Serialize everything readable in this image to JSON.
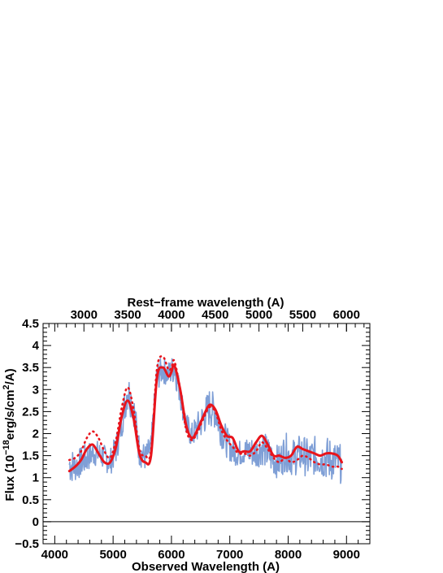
{
  "chart_data": {
    "type": "line",
    "title": "",
    "xlabel": "Observed Wavelength (A)",
    "x2label": "Rest−frame wavelength (A)",
    "ylabel": {
      "prefix": "Flux (10",
      "exp1": "−18",
      "mid": "erg/s/cm",
      "exp2": "2",
      "suffix": "/A)"
    },
    "xlim": [
      3800,
      9400
    ],
    "ylim": [
      -0.5,
      4.5
    ],
    "rest_frame_factor": 1.5,
    "x_ticks": [
      4000,
      5000,
      6000,
      7000,
      8000,
      9000
    ],
    "x2_ticks": [
      3000,
      3500,
      4000,
      4500,
      5000,
      5500,
      6000
    ],
    "y_ticks": [
      -0.5,
      0,
      0.5,
      1,
      1.5,
      2,
      2.5,
      3,
      3.5,
      4,
      4.5
    ],
    "y_tick_labels": [
      "−0.5",
      "0",
      "0.5",
      "1",
      "1.5",
      "2",
      "2.5",
      "3",
      "3.5",
      "4",
      "4.5"
    ],
    "zero_line": 0,
    "grid": false,
    "legend": "none",
    "colors": {
      "observed": "#7f9fd6",
      "model": "#e8141c",
      "axis": "#000000"
    },
    "series": [
      {
        "key": "observed",
        "style": "noisy-band",
        "x": [
          4250,
          4350,
          4450,
          4550,
          4650,
          4750,
          4850,
          4950,
          5050,
          5150,
          5250,
          5350,
          5450,
          5550,
          5650,
          5750,
          5850,
          5950,
          6050,
          6150,
          6250,
          6350,
          6450,
          6550,
          6650,
          6750,
          6850,
          6950,
          7050,
          7150,
          7250,
          7350,
          7450,
          7550,
          7650,
          7750,
          7850,
          7950,
          8050,
          8150,
          8250,
          8350,
          8450,
          8550,
          8650,
          8750,
          8850,
          8920
        ],
        "y": [
          1.3,
          1.25,
          1.35,
          1.45,
          1.55,
          1.55,
          1.45,
          1.35,
          1.65,
          2.25,
          3.0,
          2.6,
          1.6,
          1.45,
          1.7,
          3.3,
          3.45,
          3.35,
          3.5,
          2.9,
          2.2,
          1.95,
          2.15,
          2.35,
          2.6,
          2.5,
          2.1,
          1.8,
          1.6,
          1.55,
          1.6,
          1.6,
          1.55,
          1.7,
          1.55,
          1.4,
          1.35,
          1.6,
          1.45,
          1.5,
          1.55,
          1.4,
          1.5,
          1.45,
          1.45,
          1.4,
          1.35,
          1.3
        ],
        "band_halfwidth": [
          0.45,
          0.35,
          0.35,
          0.35,
          0.3,
          0.3,
          0.3,
          0.3,
          0.35,
          0.35,
          0.45,
          0.4,
          0.35,
          0.3,
          0.3,
          0.35,
          0.3,
          0.3,
          0.35,
          0.3,
          0.3,
          0.3,
          0.35,
          0.4,
          0.45,
          0.4,
          0.4,
          0.35,
          0.3,
          0.3,
          0.3,
          0.35,
          0.35,
          0.4,
          0.4,
          0.35,
          0.4,
          0.45,
          0.4,
          0.45,
          0.45,
          0.45,
          0.45,
          0.45,
          0.5,
          0.5,
          0.45,
          0.45
        ]
      },
      {
        "key": "model_solid",
        "style": "solid",
        "x": [
          4250,
          4350,
          4450,
          4550,
          4650,
          4750,
          4850,
          4950,
          5050,
          5150,
          5250,
          5350,
          5450,
          5550,
          5650,
          5750,
          5850,
          5950,
          6000,
          6050,
          6150,
          6250,
          6350,
          6450,
          6550,
          6650,
          6750,
          6850,
          6950,
          7050,
          7150,
          7250,
          7350,
          7450,
          7550,
          7650,
          7750,
          7850,
          7950,
          8050,
          8150,
          8250,
          8350,
          8450,
          8550,
          8650,
          8750,
          8850,
          8920
        ],
        "y": [
          1.15,
          1.25,
          1.4,
          1.65,
          1.75,
          1.55,
          1.35,
          1.35,
          1.7,
          2.4,
          2.75,
          2.35,
          1.55,
          1.35,
          1.5,
          3.25,
          3.5,
          3.3,
          3.4,
          3.55,
          3.0,
          2.2,
          1.9,
          2.1,
          2.4,
          2.65,
          2.55,
          2.2,
          1.95,
          1.9,
          1.6,
          1.6,
          1.6,
          1.8,
          1.95,
          1.75,
          1.5,
          1.5,
          1.45,
          1.5,
          1.7,
          1.65,
          1.6,
          1.55,
          1.5,
          1.55,
          1.55,
          1.5,
          1.35
        ]
      },
      {
        "key": "model_dotted",
        "style": "dotted",
        "x": [
          4250,
          4350,
          4450,
          4550,
          4650,
          4750,
          4850,
          4950,
          5050,
          5150,
          5250,
          5350,
          5450,
          5550,
          5650,
          5750,
          5850,
          5950,
          6000,
          6050,
          6150,
          6250,
          6350,
          6450,
          6550,
          6650,
          6750,
          6850,
          6950,
          7050,
          7150,
          7250,
          7350,
          7450,
          7550,
          7650,
          7750,
          7850,
          7950,
          8050,
          8150,
          8250,
          8350,
          8450,
          8550,
          8650,
          8750,
          8850,
          8920
        ],
        "y": [
          1.4,
          1.45,
          1.6,
          1.9,
          2.05,
          1.9,
          1.6,
          1.45,
          1.85,
          2.6,
          3.05,
          2.55,
          1.65,
          1.5,
          1.6,
          3.45,
          3.75,
          3.45,
          3.5,
          3.65,
          3.0,
          2.1,
          1.85,
          2.05,
          2.35,
          2.6,
          2.5,
          2.1,
          1.85,
          1.7,
          1.55,
          1.55,
          1.5,
          1.6,
          1.8,
          1.65,
          1.45,
          1.35,
          1.45,
          1.35,
          1.4,
          1.5,
          1.45,
          1.35,
          1.3,
          1.3,
          1.25,
          1.25,
          1.2
        ]
      }
    ]
  }
}
